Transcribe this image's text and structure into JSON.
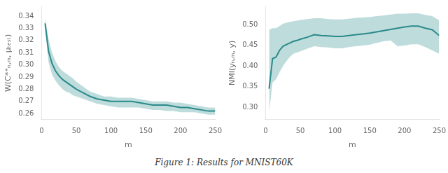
{
  "caption": "Figure 1: Results for MNIST60K",
  "chart_data": [
    {
      "type": "line",
      "xlabel": "m",
      "ylabel": "W(C*⁺ₙ,ₘ, μₜₑₛₜ)",
      "grid": false,
      "x": [
        5,
        10,
        15,
        20,
        25,
        30,
        35,
        40,
        45,
        50,
        60,
        70,
        80,
        90,
        100,
        110,
        120,
        130,
        140,
        150,
        160,
        170,
        180,
        190,
        200,
        210,
        220,
        230,
        240,
        250
      ],
      "xlim": [
        0,
        250
      ],
      "xticks": [
        0,
        50,
        100,
        150,
        200,
        250
      ],
      "ylim": [
        0.255,
        0.348
      ],
      "yticks": [
        0.26,
        0.27,
        0.28,
        0.29,
        {
          "value": 0.3,
          "label": "0.30"
        },
        0.31,
        0.32,
        0.33,
        0.34
      ],
      "series": [
        {
          "color": "#2a8a8a",
          "values": [
            0.334,
            0.311,
            0.301,
            0.295,
            0.291,
            0.288,
            0.286,
            0.284,
            0.282,
            0.28,
            0.277,
            0.274,
            0.272,
            0.271,
            0.27,
            0.27,
            0.27,
            0.27,
            0.269,
            0.268,
            0.267,
            0.267,
            0.267,
            0.266,
            0.265,
            0.265,
            0.264,
            0.263,
            0.262,
            0.262
          ],
          "lower": [
            0.329,
            0.302,
            0.292,
            0.287,
            0.283,
            0.28,
            0.278,
            0.277,
            0.275,
            0.274,
            0.272,
            0.27,
            0.268,
            0.267,
            0.266,
            0.265,
            0.265,
            0.265,
            0.265,
            0.264,
            0.263,
            0.263,
            0.262,
            0.262,
            0.261,
            0.261,
            0.261,
            0.26,
            0.259,
            0.259
          ],
          "upper": [
            0.339,
            0.321,
            0.31,
            0.303,
            0.298,
            0.295,
            0.293,
            0.291,
            0.289,
            0.286,
            0.282,
            0.278,
            0.276,
            0.274,
            0.274,
            0.273,
            0.273,
            0.273,
            0.272,
            0.271,
            0.27,
            0.27,
            0.27,
            0.269,
            0.269,
            0.268,
            0.267,
            0.266,
            0.265,
            0.265
          ]
        }
      ]
    },
    {
      "type": "line",
      "xlabel": "m",
      "ylabel": "NMI(yₙ,ₘ, y)",
      "grid": false,
      "x": [
        5,
        10,
        15,
        20,
        25,
        30,
        35,
        40,
        45,
        50,
        60,
        70,
        80,
        90,
        100,
        110,
        120,
        130,
        140,
        150,
        160,
        170,
        180,
        190,
        200,
        210,
        220,
        230,
        240,
        250
      ],
      "xlim": [
        0,
        250
      ],
      "xticks": [
        0,
        50,
        100,
        150,
        200,
        250
      ],
      "ylim": [
        0.27,
        0.545
      ],
      "yticks": [
        {
          "value": 0.3,
          "label": "0.30"
        },
        0.35,
        {
          "value": 0.4,
          "label": "0.40"
        },
        0.45,
        {
          "value": 0.5,
          "label": "0.50"
        }
      ],
      "series": [
        {
          "color": "#2a8a8a",
          "values": [
            0.345,
            0.418,
            0.422,
            0.438,
            0.448,
            0.452,
            0.456,
            0.46,
            0.462,
            0.465,
            0.47,
            0.476,
            0.474,
            0.473,
            0.472,
            0.472,
            0.474,
            0.476,
            0.478,
            0.48,
            0.483,
            0.486,
            0.489,
            0.492,
            0.495,
            0.497,
            0.497,
            0.492,
            0.488,
            0.474
          ],
          "lower": [
            0.288,
            0.36,
            0.368,
            0.385,
            0.4,
            0.412,
            0.422,
            0.43,
            0.433,
            0.436,
            0.442,
            0.448,
            0.446,
            0.445,
            0.443,
            0.443,
            0.446,
            0.448,
            0.45,
            0.452,
            0.456,
            0.46,
            0.462,
            0.448,
            0.45,
            0.453,
            0.453,
            0.446,
            0.438,
            0.43
          ],
          "upper": [
            0.488,
            0.492,
            0.492,
            0.497,
            0.503,
            0.505,
            0.507,
            0.509,
            0.51,
            0.512,
            0.514,
            0.516,
            0.516,
            0.514,
            0.513,
            0.513,
            0.515,
            0.517,
            0.518,
            0.519,
            0.521,
            0.523,
            0.525,
            0.527,
            0.527,
            0.528,
            0.528,
            0.524,
            0.521,
            0.511
          ]
        }
      ]
    }
  ]
}
